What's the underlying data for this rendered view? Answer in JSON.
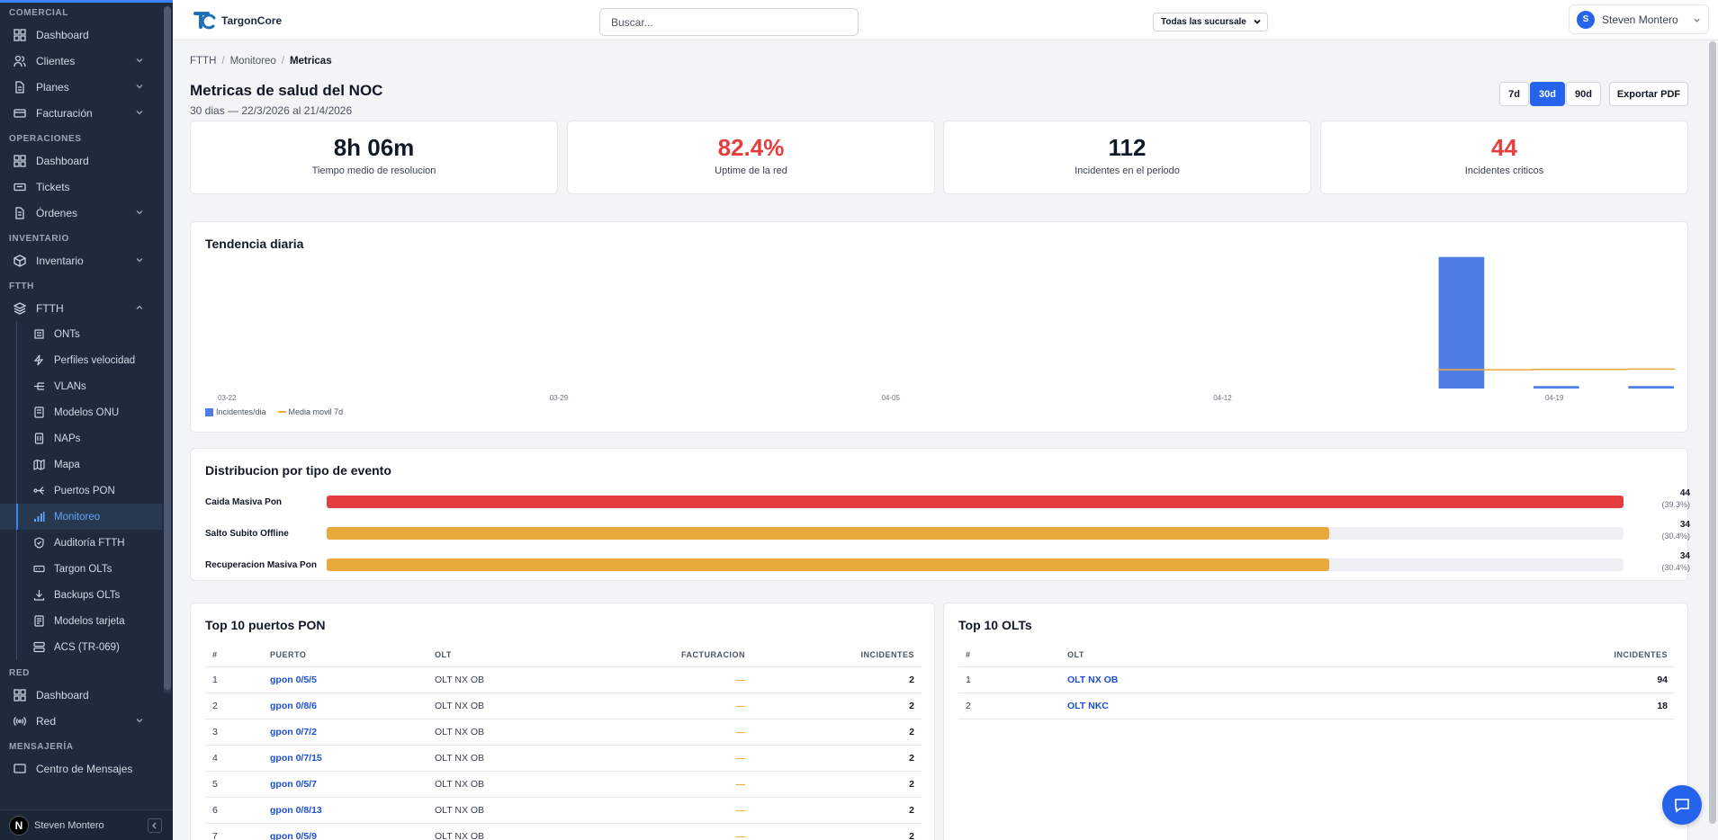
{
  "sidebar": {
    "sections": {
      "comercial": "COMERCIAL",
      "operaciones": "OPERACIONES",
      "inventario": "INVENTARIO",
      "ftth": "FTTH",
      "red": "RED",
      "mensajeria": "MENSAJERÍA"
    },
    "items": {
      "dashboard_comercial": "Dashboard",
      "clientes": "Clientes",
      "planes": "Planes",
      "facturacion": "Facturación",
      "dashboard_operaciones": "Dashboard",
      "tickets": "Tickets",
      "ordenes": "Órdenes",
      "inventario": "Inventario",
      "ftth": "FTTH",
      "dashboard_red": "Dashboard",
      "red": "Red",
      "centro_mensajes": "Centro de Mensajes"
    },
    "ftth_sub": [
      "ONTs",
      "Perfiles velocidad",
      "VLANs",
      "Modelos ONU",
      "NAPs",
      "Mapa",
      "Puertos PON",
      "Monitoreo",
      "Auditoría FTTH",
      "Targon OLTs",
      "Backups OLTs",
      "Modelos tarjeta",
      "ACS (TR-069)"
    ],
    "footer_user": "Steven Montero",
    "footer_badge": "N"
  },
  "topbar": {
    "logo_text": "TargonCore",
    "search_placeholder": "Buscar...",
    "branch": "Todas las sucursale",
    "user_name": "Steven Montero",
    "user_initial": "S"
  },
  "breadcrumb": {
    "c1": "FTTH",
    "c2": "Monitoreo",
    "c3": "Metricas"
  },
  "page": {
    "title": "Metricas de salud del NOC",
    "subtitle": "30 dias — 22/3/2026 al 21/4/2026",
    "range_7": "7d",
    "range_30": "30d",
    "range_90": "90d",
    "export": "Exportar PDF"
  },
  "kpis": [
    {
      "value": "8h 06m",
      "label": "Tiempo medio de resolucion",
      "color": "#111827"
    },
    {
      "value": "82.4%",
      "label": "Uptime de la red",
      "color": "#e53e3e"
    },
    {
      "value": "112",
      "label": "Incidentes en el periodo",
      "color": "#111827"
    },
    {
      "value": "44",
      "label": "Incidentes criticos",
      "color": "#e53e3e"
    }
  ],
  "trend": {
    "title": "Tendencia diaria",
    "legend_bar": "Incidentes/dia",
    "legend_line": "Media movil 7d"
  },
  "chart_data": {
    "type": "bar",
    "x_tick_labels": [
      "03-22",
      "03-29",
      "04-05",
      "04-12",
      "04-19"
    ],
    "categories": [
      "03-22",
      "03-23",
      "03-24",
      "03-25",
      "03-26",
      "03-27",
      "03-28",
      "03-29",
      "03-30",
      "03-31",
      "04-01",
      "04-02",
      "04-03",
      "04-04",
      "04-05",
      "04-06",
      "04-07",
      "04-08",
      "04-09",
      "04-10",
      "04-11",
      "04-12",
      "04-13",
      "04-14",
      "04-15",
      "04-16",
      "04-17",
      "04-18",
      "04-19",
      "04-20",
      "04-21"
    ],
    "series": [
      {
        "name": "Incidentes/dia",
        "type": "bar",
        "color": "#4f7de6",
        "values": [
          0,
          0,
          0,
          0,
          0,
          0,
          0,
          0,
          0,
          0,
          0,
          0,
          0,
          0,
          0,
          0,
          0,
          0,
          0,
          0,
          0,
          0,
          0,
          0,
          0,
          0,
          108,
          0,
          2,
          0,
          2
        ]
      },
      {
        "name": "Media movil 7d",
        "type": "line",
        "color": "#f0a93a",
        "values": [
          null,
          null,
          null,
          null,
          null,
          null,
          null,
          null,
          null,
          null,
          null,
          null,
          null,
          null,
          null,
          null,
          null,
          null,
          null,
          null,
          null,
          null,
          null,
          null,
          null,
          null,
          15.4,
          15.4,
          15.7,
          15.7,
          16.0
        ]
      }
    ],
    "ylim": [
      0,
      110
    ]
  },
  "distribution": {
    "title": "Distribucion por tipo de evento",
    "rows": [
      {
        "name": "Caida Masiva Pon",
        "count": "44",
        "pct": "(39.3%)",
        "fraction": 1.0,
        "color": "#e53e3e"
      },
      {
        "name": "Salto Subito Offline",
        "count": "34",
        "pct": "(30.4%)",
        "fraction": 0.773,
        "color": "#e8a93a"
      },
      {
        "name": "Recuperacion Masiva Pon",
        "count": "34",
        "pct": "(30.4%)",
        "fraction": 0.773,
        "color": "#e8a93a"
      }
    ]
  },
  "top_pon": {
    "title": "Top 10 puertos PON",
    "headers": [
      "#",
      "PUERTO",
      "OLT",
      "FACTURACION",
      "INCIDENTES"
    ],
    "rows": [
      [
        "1",
        "gpon 0/5/5",
        "OLT NX OB",
        "—",
        "2"
      ],
      [
        "2",
        "gpon 0/8/6",
        "OLT NX OB",
        "—",
        "2"
      ],
      [
        "3",
        "gpon 0/7/2",
        "OLT NX OB",
        "—",
        "2"
      ],
      [
        "4",
        "gpon 0/7/15",
        "OLT NX OB",
        "—",
        "2"
      ],
      [
        "5",
        "gpon 0/5/7",
        "OLT NX OB",
        "—",
        "2"
      ],
      [
        "6",
        "gpon 0/8/13",
        "OLT NX OB",
        "—",
        "2"
      ],
      [
        "7",
        "gpon 0/5/9",
        "OLT NX OB",
        "—",
        "2"
      ]
    ]
  },
  "top_olt": {
    "title": "Top 10 OLTs",
    "headers": [
      "#",
      "OLT",
      "INCIDENTES"
    ],
    "rows": [
      [
        "1",
        "OLT NX OB",
        "94"
      ],
      [
        "2",
        "OLT NKC",
        "18"
      ]
    ]
  }
}
